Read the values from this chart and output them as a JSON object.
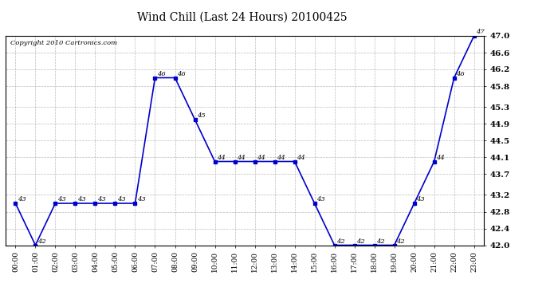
{
  "title": "Wind Chill (Last 24 Hours) 20100425",
  "copyright": "Copyright 2010 Cartronics.com",
  "hours": [
    "00:00",
    "01:00",
    "02:00",
    "03:00",
    "04:00",
    "05:00",
    "06:00",
    "07:00",
    "08:00",
    "09:00",
    "10:00",
    "11:00",
    "12:00",
    "13:00",
    "14:00",
    "15:00",
    "16:00",
    "17:00",
    "18:00",
    "19:00",
    "20:00",
    "21:00",
    "22:00",
    "23:00"
  ],
  "values": [
    43,
    42,
    43,
    43,
    43,
    43,
    43,
    46,
    46,
    45,
    44,
    44,
    44,
    44,
    44,
    43,
    42,
    42,
    42,
    42,
    43,
    44,
    46,
    47
  ],
  "ylim": [
    42.0,
    47.0
  ],
  "yticks": [
    42.0,
    42.4,
    42.8,
    43.2,
    43.7,
    44.1,
    44.5,
    44.9,
    45.3,
    45.8,
    46.2,
    46.6,
    47.0
  ],
  "line_color": "#0000cc",
  "marker": "s",
  "marker_size": 3,
  "bg_color": "#ffffff",
  "grid_color": "#aaaaaa",
  "title_fontsize": 10,
  "label_fontsize": 6.5,
  "annotation_fontsize": 6,
  "copyright_fontsize": 6
}
